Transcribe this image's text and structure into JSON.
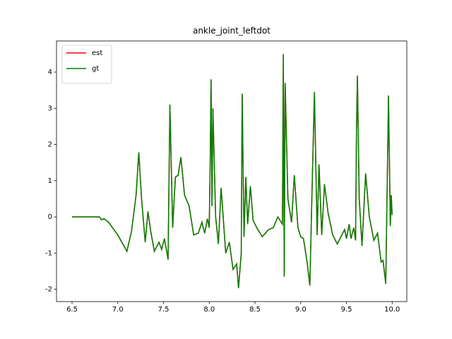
{
  "chart_data": {
    "type": "line",
    "title": "ankle_joint_leftdot",
    "x": [
      6.5,
      6.8,
      6.82,
      6.85,
      6.9,
      7.0,
      7.1,
      7.15,
      7.2,
      7.23,
      7.26,
      7.3,
      7.33,
      7.36,
      7.4,
      7.45,
      7.48,
      7.51,
      7.55,
      7.57,
      7.6,
      7.63,
      7.66,
      7.69,
      7.73,
      7.78,
      7.83,
      7.88,
      7.92,
      7.95,
      7.98,
      8.0,
      8.01,
      8.02,
      8.03,
      8.04,
      8.07,
      8.1,
      8.13,
      8.18,
      8.22,
      8.26,
      8.3,
      8.32,
      8.35,
      8.36,
      8.38,
      8.4,
      8.42,
      8.45,
      8.48,
      8.52,
      8.58,
      8.65,
      8.7,
      8.75,
      8.8,
      8.81,
      8.82,
      8.83,
      8.86,
      8.9,
      8.93,
      8.97,
      9.0,
      9.03,
      9.07,
      9.1,
      9.12,
      9.15,
      9.18,
      9.2,
      9.23,
      9.26,
      9.3,
      9.35,
      9.4,
      9.45,
      9.48,
      9.5,
      9.53,
      9.55,
      9.58,
      9.6,
      9.61,
      9.62,
      9.64,
      9.67,
      9.71,
      9.75,
      9.8,
      9.84,
      9.88,
      9.9,
      9.93,
      9.96,
      9.98,
      9.99,
      10.0
    ],
    "series": [
      {
        "name": "est",
        "color": "#ff0000",
        "values": [
          0,
          0,
          -0.08,
          -0.05,
          -0.15,
          -0.5,
          -0.95,
          -0.4,
          0.6,
          1.78,
          0.5,
          -0.7,
          0.15,
          -0.4,
          -0.95,
          -0.7,
          -0.9,
          -0.6,
          -1.18,
          3.1,
          -0.3,
          1.1,
          1.15,
          1.65,
          0.6,
          0.3,
          -0.5,
          -0.45,
          -0.15,
          -0.45,
          -0.05,
          -0.3,
          1.45,
          3.8,
          0.3,
          3.0,
          0.0,
          -0.75,
          0.8,
          -1.0,
          -0.7,
          -1.45,
          -1.3,
          -1.97,
          -1.0,
          3.4,
          -0.55,
          1.1,
          -0.2,
          0.85,
          -0.1,
          -0.3,
          -0.55,
          -0.35,
          -0.3,
          0.0,
          -0.2,
          4.5,
          -1.65,
          3.7,
          0.5,
          -0.15,
          1.15,
          -0.3,
          -0.55,
          -0.6,
          -1.25,
          -1.9,
          0.3,
          3.45,
          -0.5,
          1.45,
          -0.5,
          0.9,
          0.1,
          -0.5,
          -0.75,
          -0.5,
          -0.35,
          -0.6,
          -0.2,
          -0.6,
          -0.3,
          -0.65,
          2.4,
          3.9,
          0.5,
          -0.8,
          1.2,
          0.0,
          -0.65,
          -0.45,
          -1.25,
          -1.2,
          -1.85,
          3.35,
          -0.25,
          0.6,
          0.05
        ]
      },
      {
        "name": "gt",
        "color": "#008000",
        "values": [
          0,
          0,
          -0.08,
          -0.05,
          -0.15,
          -0.5,
          -0.95,
          -0.4,
          0.6,
          1.78,
          0.5,
          -0.7,
          0.15,
          -0.4,
          -0.95,
          -0.7,
          -0.9,
          -0.6,
          -1.18,
          3.1,
          -0.3,
          1.1,
          1.15,
          1.65,
          0.6,
          0.3,
          -0.5,
          -0.45,
          -0.15,
          -0.45,
          -0.05,
          -0.3,
          1.45,
          3.8,
          0.3,
          3.0,
          0.0,
          -0.75,
          0.8,
          -1.0,
          -0.7,
          -1.45,
          -1.3,
          -1.97,
          -1.0,
          3.4,
          -0.55,
          1.1,
          -0.2,
          0.85,
          -0.1,
          -0.3,
          -0.55,
          -0.35,
          -0.3,
          0.0,
          -0.2,
          4.5,
          -1.65,
          3.7,
          0.5,
          -0.15,
          1.15,
          -0.3,
          -0.55,
          -0.6,
          -1.25,
          -1.9,
          0.3,
          3.45,
          -0.5,
          1.45,
          -0.5,
          0.9,
          0.1,
          -0.5,
          -0.75,
          -0.5,
          -0.35,
          -0.6,
          -0.2,
          -0.6,
          -0.3,
          -0.65,
          2.4,
          3.9,
          0.5,
          -0.8,
          1.2,
          0.0,
          -0.65,
          -0.45,
          -1.25,
          -1.2,
          -1.85,
          3.35,
          -0.25,
          0.6,
          0.05
        ]
      }
    ],
    "xlim": [
      6.33,
      10.16
    ],
    "ylim": [
      -2.34,
      4.86
    ],
    "xticks": [
      6.5,
      {
        "value": 7,
        "label": "7.0"
      },
      7.5,
      {
        "value": 8,
        "label": "8.0"
      },
      8.5,
      {
        "value": 9,
        "label": "9.0"
      },
      9.5,
      {
        "value": 10,
        "label": "10.0"
      }
    ],
    "yticks": [
      -2,
      -1,
      0,
      1,
      2,
      3,
      4
    ],
    "legend": "upper left",
    "grid": false
  }
}
